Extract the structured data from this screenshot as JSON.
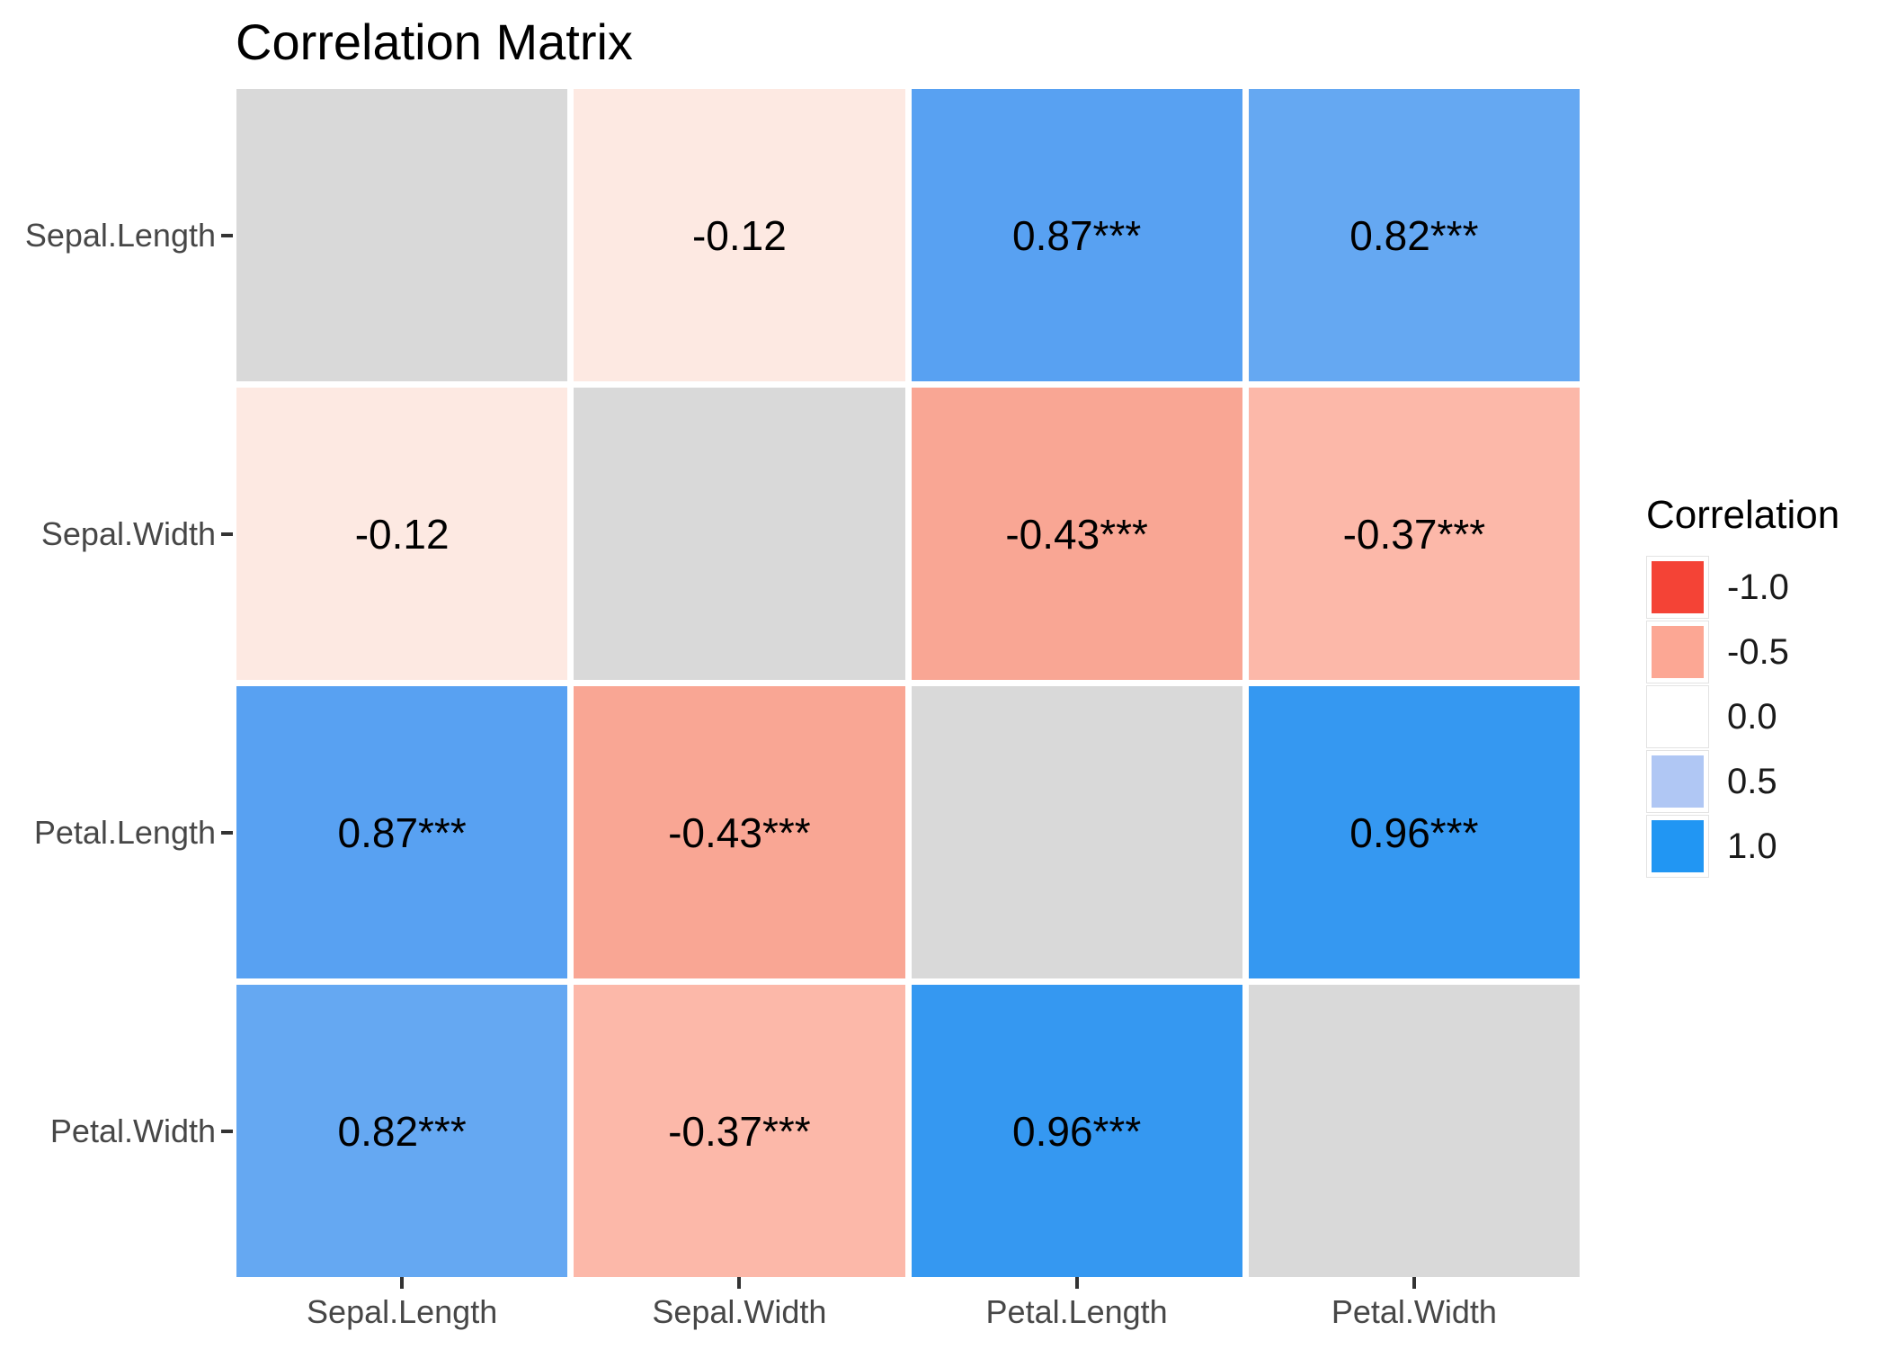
{
  "chart_data": {
    "type": "heatmap",
    "title": "Correlation Matrix",
    "variables": [
      "Sepal.Length",
      "Sepal.Width",
      "Petal.Length",
      "Petal.Width"
    ],
    "x_axis_labels": [
      "Sepal.Length",
      "Sepal.Width",
      "Petal.Length",
      "Petal.Width"
    ],
    "y_axis_labels": [
      "Sepal.Length",
      "Sepal.Width",
      "Petal.Length",
      "Petal.Width"
    ],
    "matrix": [
      [
        null,
        -0.12,
        0.87,
        0.82
      ],
      [
        -0.12,
        null,
        -0.43,
        -0.37
      ],
      [
        0.87,
        -0.43,
        null,
        0.96
      ],
      [
        0.82,
        -0.37,
        0.96,
        null
      ]
    ],
    "cell_labels": [
      [
        "",
        "-0.12",
        "0.87***",
        "0.82***"
      ],
      [
        "-0.12",
        "",
        "-0.43***",
        "-0.37***"
      ],
      [
        "0.87***",
        "-0.43***",
        "",
        "0.96***"
      ],
      [
        "0.82***",
        "-0.37***",
        "0.96***",
        ""
      ]
    ],
    "cell_colors": [
      [
        "#d9d9d9",
        "#fde9e2",
        "#58a1f2",
        "#65a8f2"
      ],
      [
        "#fde9e2",
        "#d9d9d9",
        "#f9a694",
        "#fcb8a9"
      ],
      [
        "#58a1f2",
        "#f9a694",
        "#d9d9d9",
        "#3598f1"
      ],
      [
        "#65a8f2",
        "#fcb8a9",
        "#3598f1",
        "#d9d9d9"
      ]
    ],
    "na_color": "#d9d9d9",
    "legend": {
      "title": "Correlation",
      "position": "right",
      "entries": [
        {
          "label": "-1.0",
          "color": "#f44336"
        },
        {
          "label": "-0.5",
          "color": "#fca794"
        },
        {
          "label": "0.0",
          "color": "#ffffff"
        },
        {
          "label": "0.5",
          "color": "#b0c7f4"
        },
        {
          "label": "1.0",
          "color": "#2196f3"
        }
      ]
    },
    "layout": {
      "grid_on": false,
      "value_range": [
        -1.0,
        1.0
      ],
      "diagonal_shown_as": "gray NA cells"
    },
    "colors": {
      "axis_text": "#474747",
      "tick": "#333333",
      "cell_text": "#000000",
      "background": "#ffffff"
    }
  }
}
